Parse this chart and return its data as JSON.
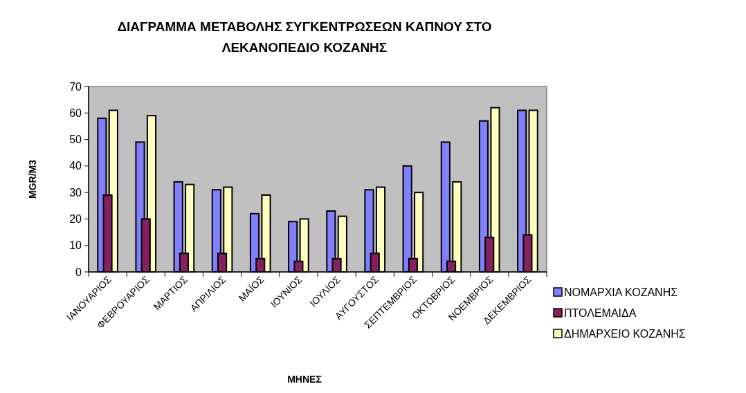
{
  "chart_data": {
    "type": "bar",
    "title": "ΔΙΑΓΡΑΜΜΑ ΜΕΤΑΒΟΛΗΣ ΣΥΓΚΕΝΤΡΩΣΕΩΝ ΚΑΠΝΟΥ ΣΤΟ ΛΕΚΑΝΟΠΕΔΙΟ ΚΟΖΑΝΗΣ",
    "xlabel": "ΜΗΝΕΣ",
    "ylabel": "MGR/M3",
    "categories": [
      "ΙΑΝΟΥΑΡΙΟΣ",
      "ΦΕΒΡΟΥΑΡΙΟΣ",
      "ΜΑΡΤΙΟΣ",
      "ΑΠΡΙΛΙΟΣ",
      "ΜΑΪΟΣ",
      "ΙΟΥΝΙΟΣ",
      "ΙΟΥΛΙΟΣ",
      "ΑΥΓΟΥΣΤΟΣ",
      "ΣΕΠΤΕΜΒΡΙΟΣ",
      "ΟΚΤΩΒΡΙΟΣ",
      "ΝΟΕΜΒΡΙΟΣ",
      "ΔΕΚΕΜΒΡΙΟΣ"
    ],
    "series": [
      {
        "name": "ΝΟΜΑΡΧΙΑ ΚΟΖΑΝΗΣ",
        "color": "#8080ff",
        "values": [
          58,
          49,
          34,
          31,
          22,
          19,
          23,
          31,
          40,
          49,
          57,
          61
        ]
      },
      {
        "name": "ΠΤΟΛΕΜΑΙΔΑ",
        "color": "#862061",
        "values": [
          29,
          20,
          7,
          7,
          5,
          4,
          5,
          7,
          5,
          4,
          13,
          14
        ]
      },
      {
        "name": "ΔΗΜΑΡΧΕΙΟ ΚΟΖΑΝΗΣ",
        "color": "#ffffc0",
        "values": [
          61,
          59,
          33,
          32,
          29,
          20,
          21,
          32,
          30,
          34,
          62,
          61
        ]
      }
    ],
    "ylim": [
      0,
      70
    ],
    "yticks": [
      0,
      10,
      20,
      30,
      40,
      50,
      60,
      70
    ],
    "grid": false,
    "legend": "bottom right"
  }
}
